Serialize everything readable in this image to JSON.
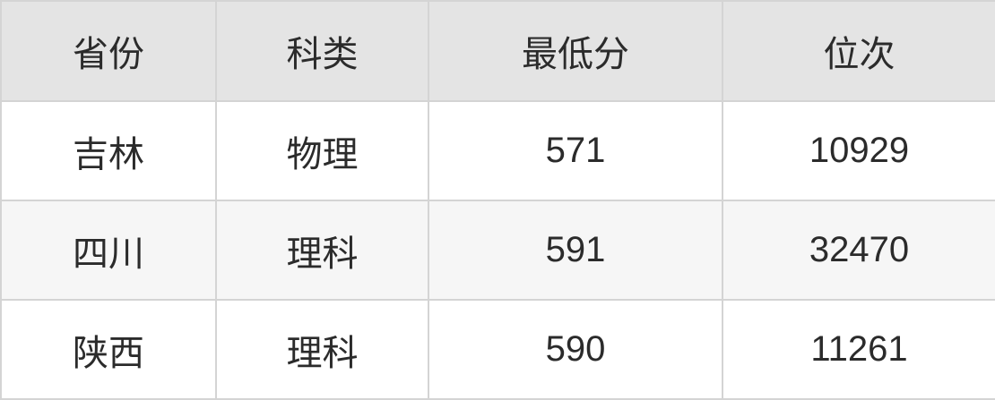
{
  "chart_data": {
    "type": "table",
    "columns": [
      "省份",
      "科类",
      "最低分",
      "位次"
    ],
    "rows": [
      [
        "吉林",
        "物理",
        571,
        10929
      ],
      [
        "四川",
        "理科",
        591,
        32470
      ],
      [
        "陕西",
        "理科",
        590,
        11261
      ]
    ]
  },
  "colors": {
    "header_bg": "#e4e4e4",
    "row_bg": "#ffffff",
    "row_alt_bg": "#f6f6f6",
    "border": "#d4d4d4",
    "text": "#2b2b2b"
  }
}
